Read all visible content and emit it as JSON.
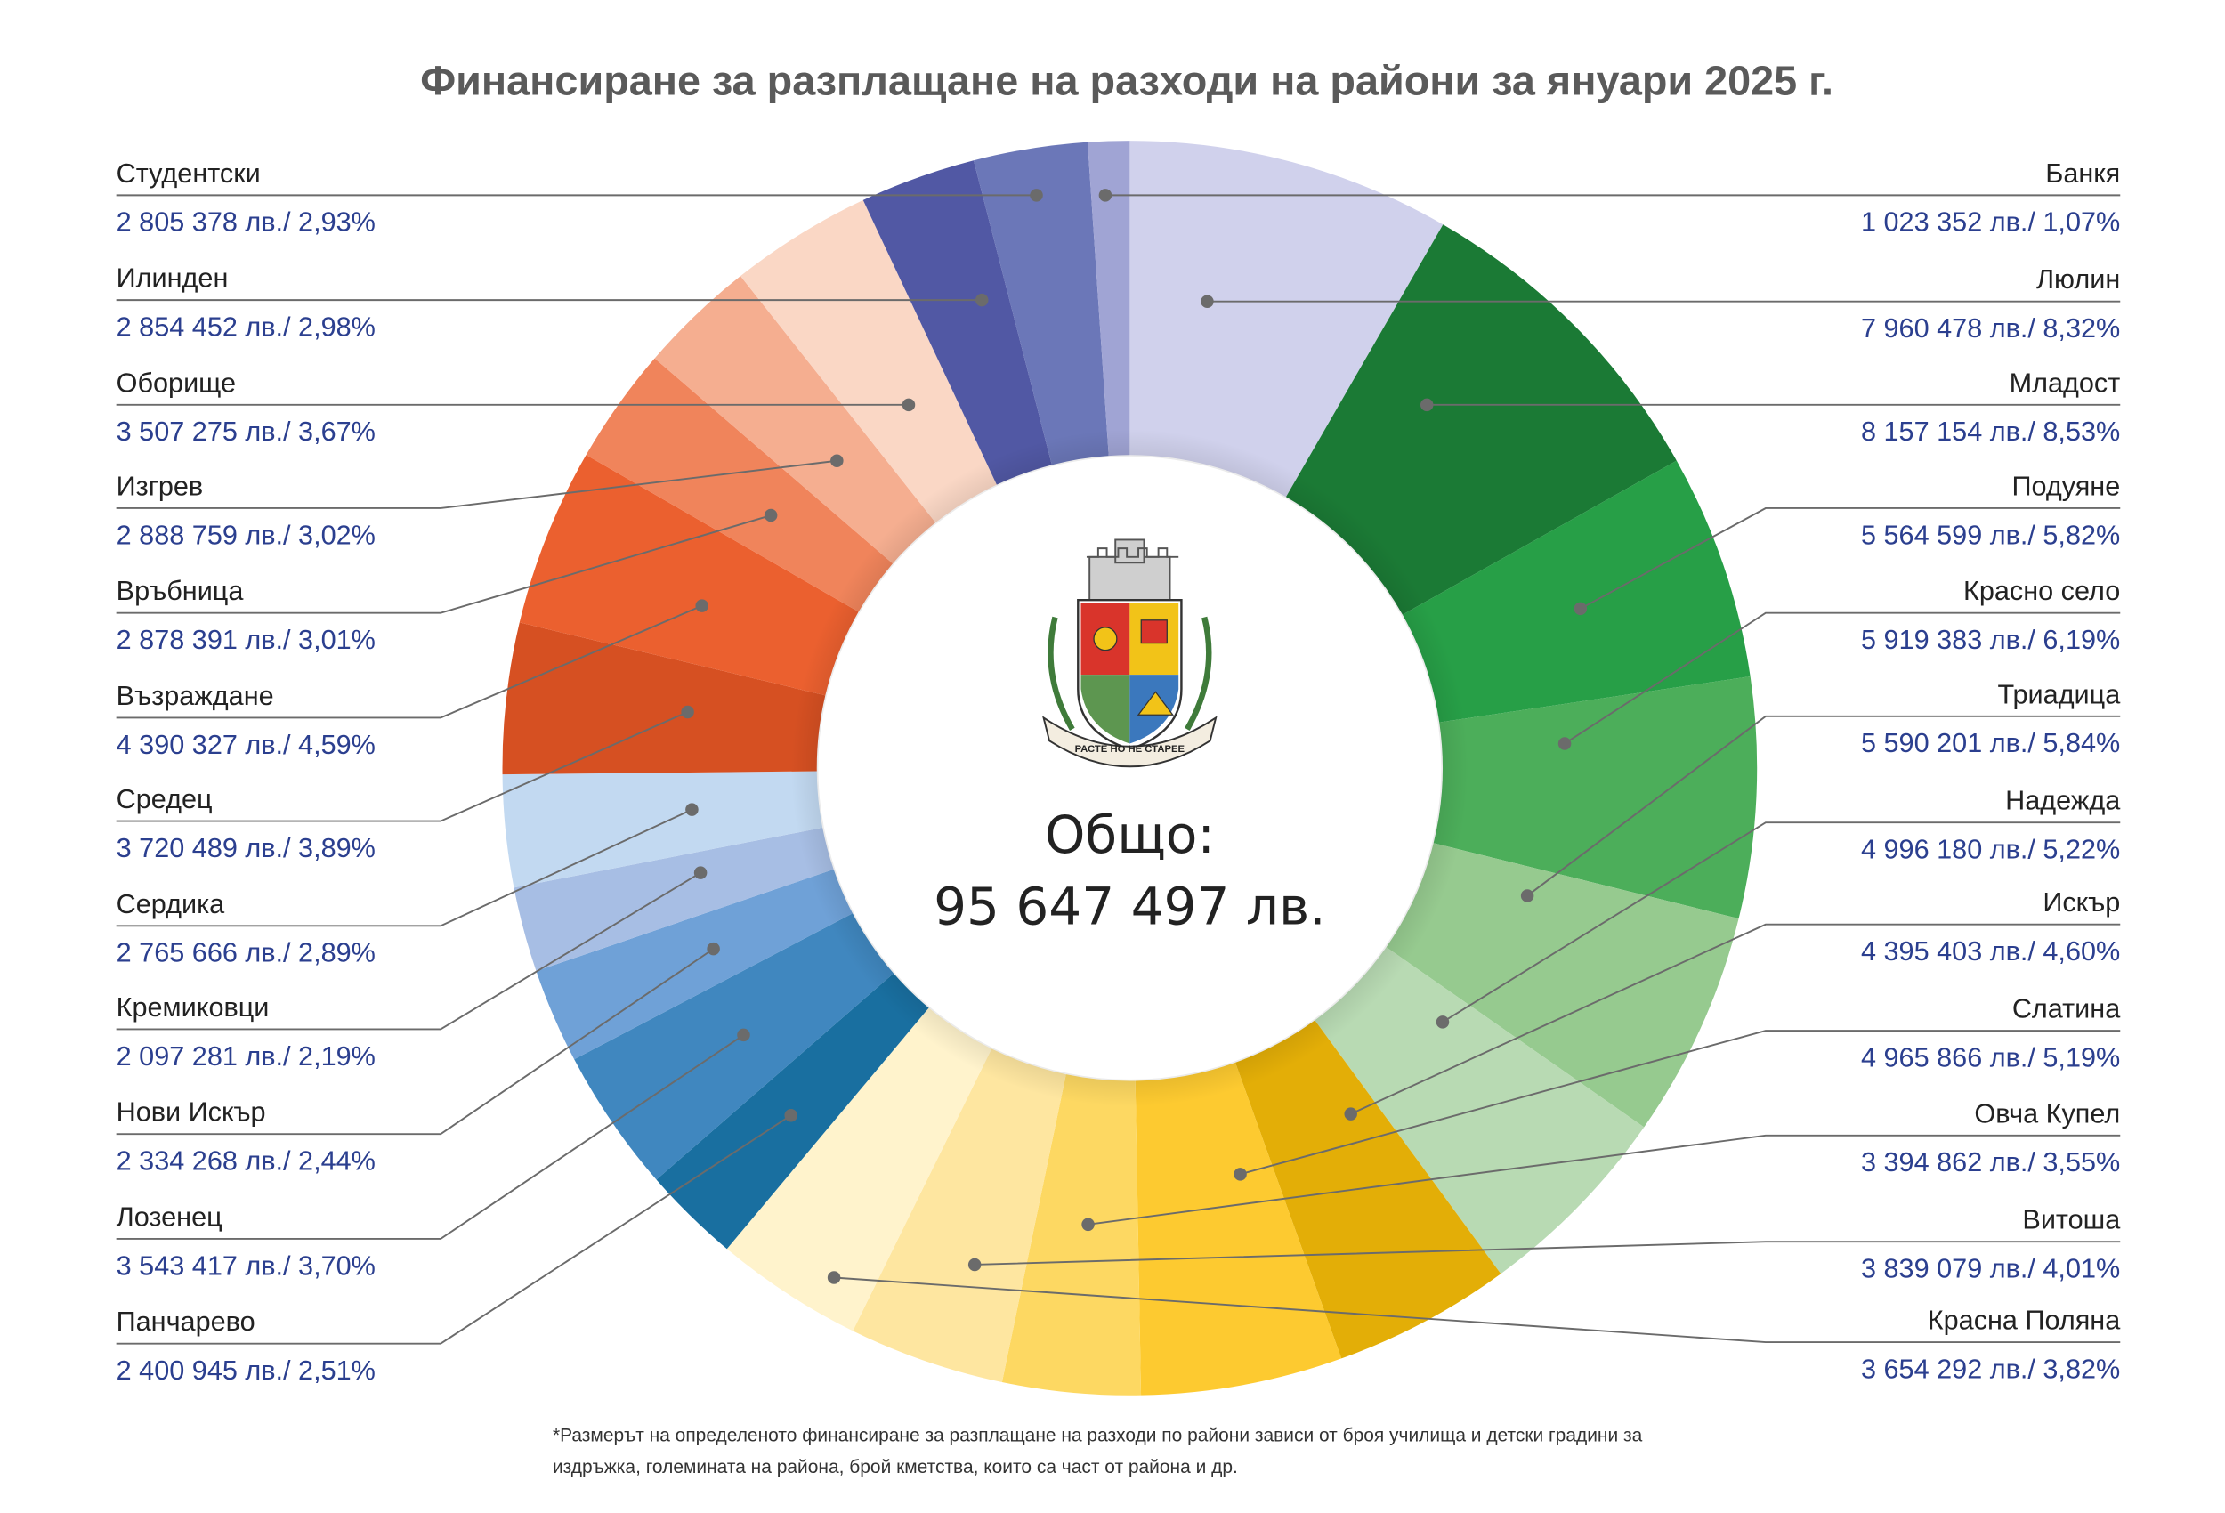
{
  "title": "Финансиране за разплащане на разходи на райони за януари  2025 г.",
  "total_label": "Общо:",
  "total_value": "95 647 497 лв.",
  "footnote_line1": "*Размерът на определеното финансиране за разплащане на разходи по райони зависи от броя училища и детски градини за",
  "footnote_line2": "издръжка, големината на района, брой кметства, които са част от района и др.",
  "logo_motto": "РАСТЕ НО НЕ СТАРЕЕ",
  "chart_data": {
    "type": "pie",
    "variant": "donut",
    "title": "Финансиране за разплащане на разходи на райони за януари  2025 г.",
    "unit": "лв.",
    "total": 95647497,
    "order": "clockwise from top",
    "series": [
      {
        "name": "Люлин",
        "value": 7960478,
        "percent": 8.32,
        "label": "7 960 478 лв./ 8,32%",
        "color": "#d0d1ec",
        "side": "right"
      },
      {
        "name": "Младост",
        "value": 8157154,
        "percent": 8.53,
        "label": "8 157 154 лв./ 8,53%",
        "color": "#1b7a35",
        "side": "right"
      },
      {
        "name": "Подуяне",
        "value": 5564599,
        "percent": 5.82,
        "label": "5 564 599 лв./ 5,82%",
        "color": "#279f47",
        "side": "right"
      },
      {
        "name": "Красно село",
        "value": 5919383,
        "percent": 6.19,
        "label": "5 919 383 лв./ 6,19%",
        "color": "#4cae5a",
        "side": "right"
      },
      {
        "name": "Триадица",
        "value": 5590201,
        "percent": 5.84,
        "label": "5 590 201 лв./ 5,84%",
        "color": "#96ca8f",
        "side": "right"
      },
      {
        "name": "Надежда",
        "value": 4996180,
        "percent": 5.22,
        "label": "4 996 180 лв./ 5,22%",
        "color": "#b8dab3",
        "side": "right"
      },
      {
        "name": "Искър",
        "value": 4395403,
        "percent": 4.6,
        "label": "4 395 403 лв./ 4,60%",
        "color": "#e3ae07",
        "side": "right"
      },
      {
        "name": "Слатина",
        "value": 4965866,
        "percent": 5.19,
        "label": "4 965 866 лв./ 5,19%",
        "color": "#fdca30",
        "side": "right"
      },
      {
        "name": "Овча Купел",
        "value": 3394862,
        "percent": 3.55,
        "label": "3 394 862 лв./ 3,55%",
        "color": "#fdd862",
        "side": "right"
      },
      {
        "name": "Витоша",
        "value": 3839079,
        "percent": 4.01,
        "label": "3 839 079 лв./ 4,01%",
        "color": "#fee6a0",
        "side": "right"
      },
      {
        "name": "Красна Поляна",
        "value": 3654292,
        "percent": 3.82,
        "label": "3 654 292 лв./ 3,82%",
        "color": "#fff3cc",
        "side": "right"
      },
      {
        "name": "Панчарево",
        "value": 2400945,
        "percent": 2.51,
        "label": "2 400 945 лв./ 2,51%",
        "color": "#196fa0",
        "side": "left"
      },
      {
        "name": "Лозенец",
        "value": 3543417,
        "percent": 3.7,
        "label": "3 543 417 лв./ 3,70%",
        "color": "#4087bf",
        "side": "left"
      },
      {
        "name": "Нови Искър",
        "value": 2334268,
        "percent": 2.44,
        "label": "2 334 268 лв./ 2,44%",
        "color": "#6fa1d7",
        "side": "left"
      },
      {
        "name": "Кремиковци",
        "value": 2097281,
        "percent": 2.19,
        "label": "2 097 281 лв./ 2,19%",
        "color": "#a7bee4",
        "side": "left"
      },
      {
        "name": "Сердика",
        "value": 2765666,
        "percent": 2.89,
        "label": "2 765 666 лв./ 2,89%",
        "color": "#c2d9f1",
        "side": "left"
      },
      {
        "name": "Средец",
        "value": 3720489,
        "percent": 3.89,
        "label": "3 720 489 лв./ 3,89%",
        "color": "#d65022",
        "side": "left"
      },
      {
        "name": "Възраждане",
        "value": 4390327,
        "percent": 4.59,
        "label": "4 390 327 лв./ 4,59%",
        "color": "#eb602f",
        "side": "left"
      },
      {
        "name": "Връбница",
        "value": 2878391,
        "percent": 3.01,
        "label": "2 878 391 лв./ 3,01%",
        "color": "#f0845b",
        "side": "left"
      },
      {
        "name": "Изгрев",
        "value": 2888759,
        "percent": 3.02,
        "label": "2 888 759 лв./ 3,02%",
        "color": "#f5ae90",
        "side": "left"
      },
      {
        "name": "Оборище",
        "value": 3507275,
        "percent": 3.67,
        "label": "3 507 275 лв./ 3,67%",
        "color": "#fad7c5",
        "side": "left"
      },
      {
        "name": "Илинден",
        "value": 2854452,
        "percent": 2.98,
        "label": "2 854 452 лв./ 2,98%",
        "color": "#5158a4",
        "side": "left"
      },
      {
        "name": "Студентски",
        "value": 2805378,
        "percent": 2.93,
        "label": "2 805 378 лв./ 2,93%",
        "color": "#6b77b8",
        "side": "left"
      },
      {
        "name": "Банкя",
        "value": 1023352,
        "percent": 1.07,
        "label": "1 023 352 лв./ 1,07%",
        "color": "#a0a4d4",
        "side": "right"
      }
    ],
    "left_labels_top_to_bottom": [
      "Студентски",
      "Илинден",
      "Оборище",
      "Изгрев",
      "Връбница",
      "Възраждане",
      "Средец",
      "Сердика",
      "Кремиковци",
      "Нови Искър",
      "Лозенец",
      "Панчарево"
    ],
    "right_labels_top_to_bottom": [
      "Банкя",
      "Люлин",
      "Младост",
      "Подуяне",
      "Красно село",
      "Триадица",
      "Надежда",
      "Искър",
      "Слатина",
      "Овча Купел",
      "Витоша",
      "Красна Поляна"
    ]
  }
}
